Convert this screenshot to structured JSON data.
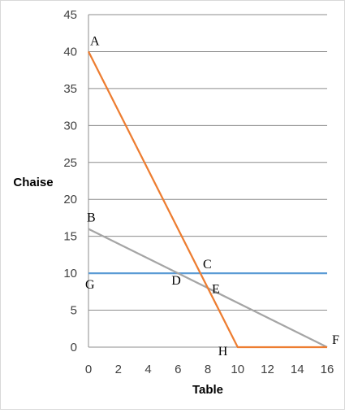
{
  "chart_data": {
    "type": "line",
    "xlabel": "Table",
    "ylabel": "Chaise",
    "xlim": [
      0,
      16
    ],
    "ylim": [
      0,
      45
    ],
    "x_ticks": [
      0,
      2,
      4,
      6,
      8,
      10,
      12,
      14,
      16
    ],
    "y_ticks": [
      0,
      5,
      10,
      15,
      20,
      25,
      30,
      35,
      40,
      45
    ],
    "x_tick_labels": [
      "0",
      "2",
      "4",
      "6",
      "8",
      "10",
      "12",
      "14",
      "16"
    ],
    "y_tick_labels": [
      "0",
      "5",
      "10",
      "15",
      "20",
      "25",
      "30",
      "35",
      "40",
      "45"
    ],
    "grid": "horizontal",
    "legend": "none",
    "series": [
      {
        "color": "#ed7d31",
        "points": [
          [
            0,
            40
          ],
          [
            10,
            0
          ],
          [
            16,
            0
          ]
        ]
      },
      {
        "color": "#a5a5a5",
        "points": [
          [
            0,
            16
          ],
          [
            16,
            0
          ]
        ]
      },
      {
        "color": "#5b9bd5",
        "points": [
          [
            0,
            10
          ],
          [
            16,
            10
          ]
        ]
      }
    ],
    "point_labels": [
      {
        "text": "A",
        "x": 0,
        "y": 40,
        "anchor": "above-right"
      },
      {
        "text": "B",
        "x": 0,
        "y": 16,
        "anchor": "above-right"
      },
      {
        "text": "C",
        "x": 8,
        "y": 10,
        "anchor": "above"
      },
      {
        "text": "D",
        "x": 6,
        "y": 10,
        "anchor": "below-left"
      },
      {
        "text": "E",
        "x": 8,
        "y": 8,
        "anchor": "right"
      },
      {
        "text": "F",
        "x": 16,
        "y": 0,
        "anchor": "above-right"
      },
      {
        "text": "G",
        "x": 0,
        "y": 10,
        "anchor": "below-right"
      },
      {
        "text": "H",
        "x": 10,
        "y": 0,
        "anchor": "below-left"
      }
    ]
  }
}
